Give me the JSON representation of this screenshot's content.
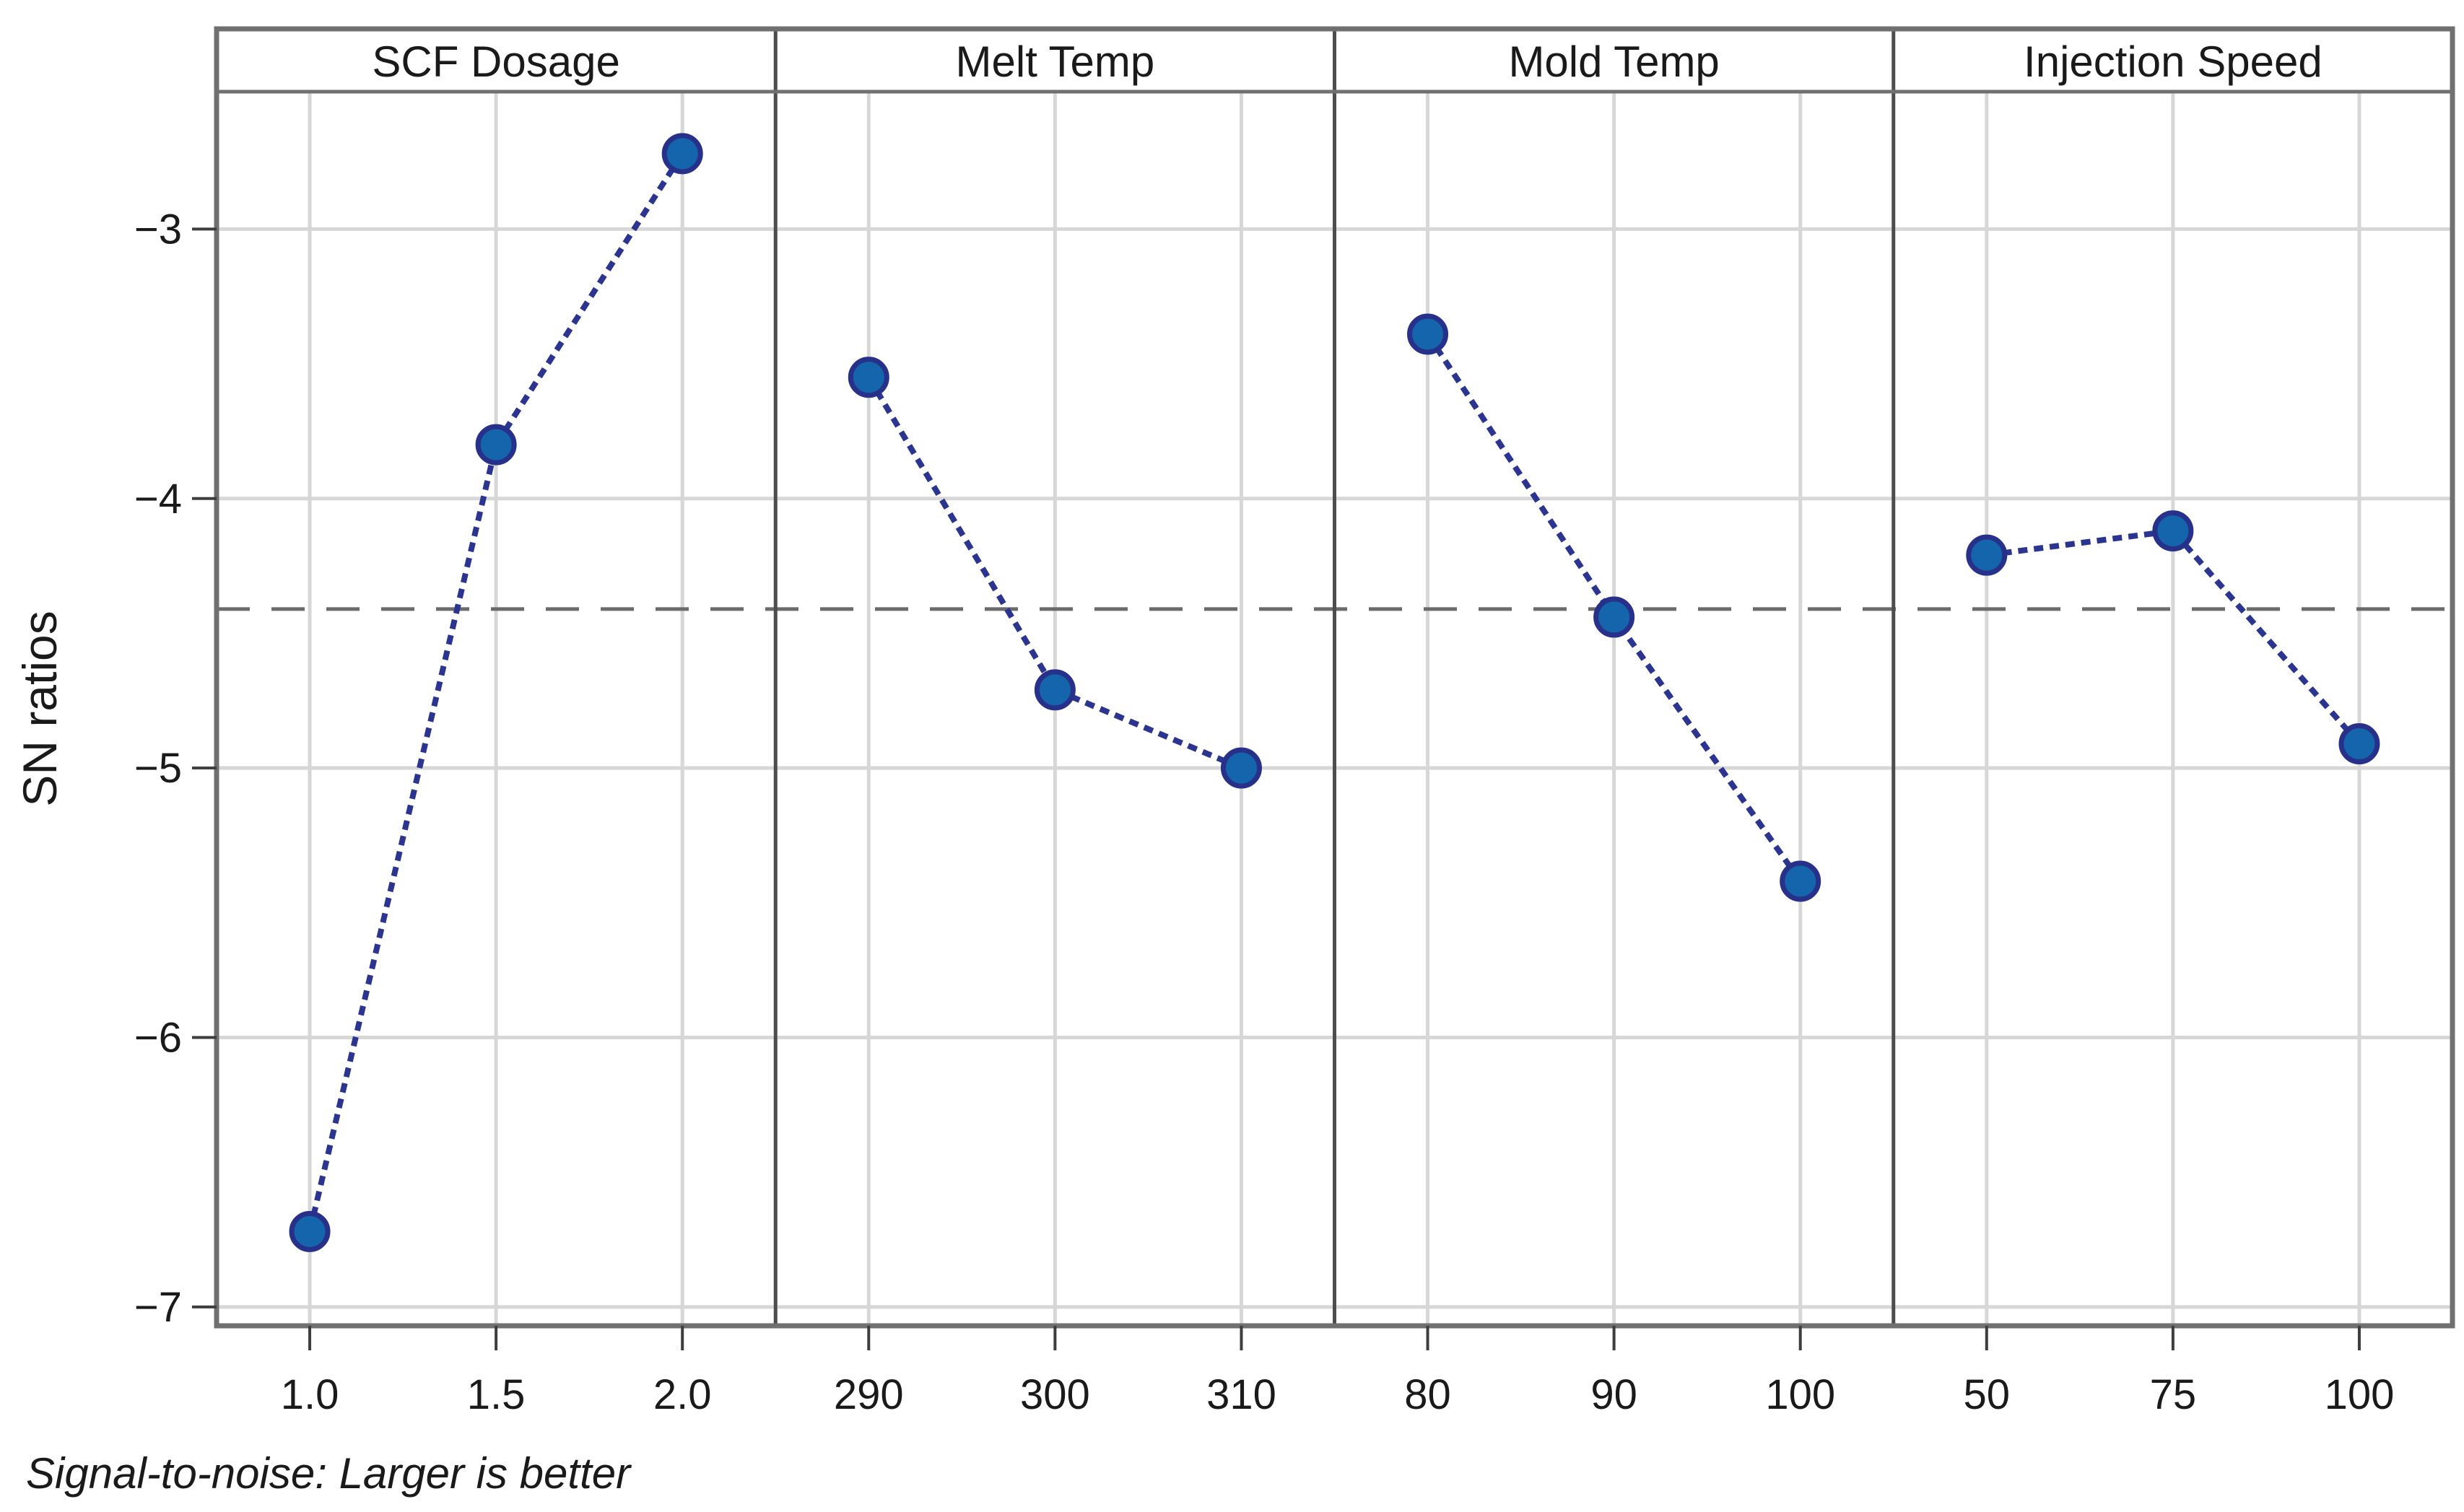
{
  "figure": {
    "kind": "main-effects-plot"
  },
  "chart_data": {
    "type": "line",
    "ylabel": "SN ratios",
    "footer": "Signal-to-noise: Larger is better",
    "yticks": [
      -3,
      -4,
      -5,
      -6,
      -7
    ],
    "ylim_top": -2.49,
    "ylim_bottom": -7.07,
    "reference_line": -4.41,
    "grid": true,
    "legend": "none",
    "panels": [
      {
        "title": "SCF Dosage",
        "categories": [
          "1.0",
          "1.5",
          "2.0"
        ],
        "values": [
          -6.72,
          -3.8,
          -2.72
        ]
      },
      {
        "title": "Melt Temp",
        "categories": [
          "290",
          "300",
          "310"
        ],
        "values": [
          -3.55,
          -4.71,
          -5.0
        ]
      },
      {
        "title": "Mold Temp",
        "categories": [
          "80",
          "90",
          "100"
        ],
        "values": [
          -3.39,
          -4.44,
          -5.42
        ]
      },
      {
        "title": "Injection Speed",
        "categories": [
          "50",
          "75",
          "100"
        ],
        "values": [
          -4.21,
          -4.12,
          -4.91
        ]
      }
    ],
    "colors": {
      "line": "#2B3590",
      "marker_fill": "#1565AC",
      "marker_stroke": "#283189",
      "grid": "#D7D7D7",
      "frame": "#707070",
      "separator": "#4D4D4D",
      "tick": "#3D3D3D",
      "reference": "#6B6B6B",
      "text": "#1A1A1A",
      "background": "#FFFFFF"
    }
  }
}
